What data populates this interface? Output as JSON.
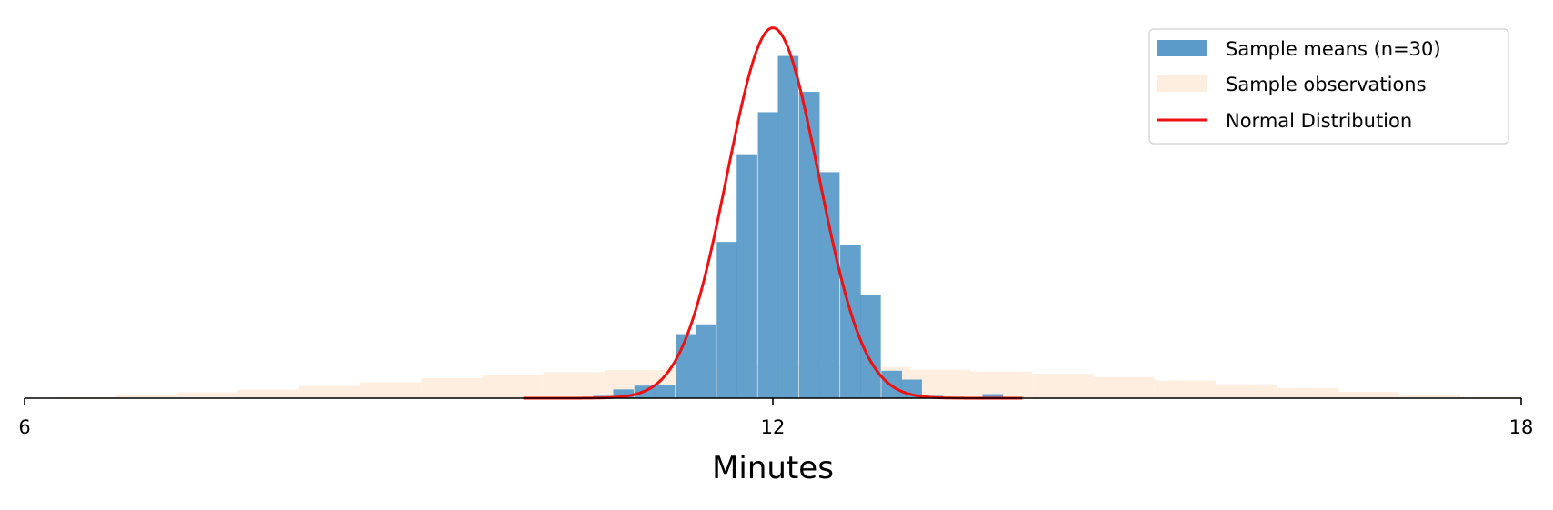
{
  "chart_data": {
    "type": "bar",
    "title": "",
    "xlabel": "Minutes",
    "ylabel": "",
    "xlim": [
      6,
      18
    ],
    "xticks": [
      "6",
      "12",
      "18"
    ],
    "y_axis_visible": false,
    "grid": false,
    "legend": {
      "placement": "top-right",
      "entries": [
        "Sample means (n=30)",
        "Sample observations",
        "Normal Distribution"
      ]
    },
    "series": [
      {
        "name": "Sample observations",
        "kind": "histogram",
        "color": "#fdeee0",
        "bin_width": 0.49,
        "bins": [
          {
            "x0": 6.24,
            "density": 0.003
          },
          {
            "x0": 6.73,
            "density": 0.009
          },
          {
            "x0": 7.22,
            "density": 0.017
          },
          {
            "x0": 7.71,
            "density": 0.025
          },
          {
            "x0": 8.2,
            "density": 0.036
          },
          {
            "x0": 8.69,
            "density": 0.047
          },
          {
            "x0": 9.18,
            "density": 0.059
          },
          {
            "x0": 9.67,
            "density": 0.069
          },
          {
            "x0": 10.16,
            "density": 0.077
          },
          {
            "x0": 10.65,
            "density": 0.083
          },
          {
            "x0": 11.14,
            "density": 0.093
          },
          {
            "x0": 11.63,
            "density": 0.096
          },
          {
            "x0": 12.12,
            "density": 0.094
          },
          {
            "x0": 12.61,
            "density": 0.092
          },
          {
            "x0": 13.1,
            "density": 0.084
          },
          {
            "x0": 13.59,
            "density": 0.079
          },
          {
            "x0": 14.08,
            "density": 0.072
          },
          {
            "x0": 14.57,
            "density": 0.062
          },
          {
            "x0": 15.06,
            "density": 0.052
          },
          {
            "x0": 15.55,
            "density": 0.041
          },
          {
            "x0": 16.04,
            "density": 0.03
          },
          {
            "x0": 16.53,
            "density": 0.019
          },
          {
            "x0": 17.02,
            "density": 0.011
          },
          {
            "x0": 17.51,
            "density": 0.004
          }
        ]
      },
      {
        "name": "Sample means (n=30)",
        "kind": "histogram",
        "color": "#5b9bc9",
        "bin_width": 0.165,
        "bins": [
          {
            "x0": 10.56,
            "density": 0.007
          },
          {
            "x0": 10.72,
            "density": 0.026
          },
          {
            "x0": 10.89,
            "density": 0.037
          },
          {
            "x0": 11.05,
            "density": 0.039
          },
          {
            "x0": 11.22,
            "density": 0.189
          },
          {
            "x0": 11.38,
            "density": 0.218
          },
          {
            "x0": 11.55,
            "density": 0.461
          },
          {
            "x0": 11.71,
            "density": 0.72
          },
          {
            "x0": 11.88,
            "density": 0.844
          },
          {
            "x0": 12.04,
            "density": 1.01
          },
          {
            "x0": 12.21,
            "density": 0.904
          },
          {
            "x0": 12.37,
            "density": 0.667
          },
          {
            "x0": 12.54,
            "density": 0.453
          },
          {
            "x0": 12.7,
            "density": 0.305
          },
          {
            "x0": 12.87,
            "density": 0.081
          },
          {
            "x0": 13.03,
            "density": 0.055
          },
          {
            "x0": 13.2,
            "density": 0.007
          },
          {
            "x0": 13.36,
            "density": 0.004
          },
          {
            "x0": 13.52,
            "density": 0.004
          },
          {
            "x0": 13.68,
            "density": 0.012
          }
        ]
      },
      {
        "name": "Normal Distribution",
        "kind": "line",
        "color": "#ee1111",
        "mean": 12.0,
        "sd": 0.365,
        "x_range": [
          10.0,
          14.0
        ]
      }
    ],
    "ylim": [
      0,
      1.1
    ]
  }
}
